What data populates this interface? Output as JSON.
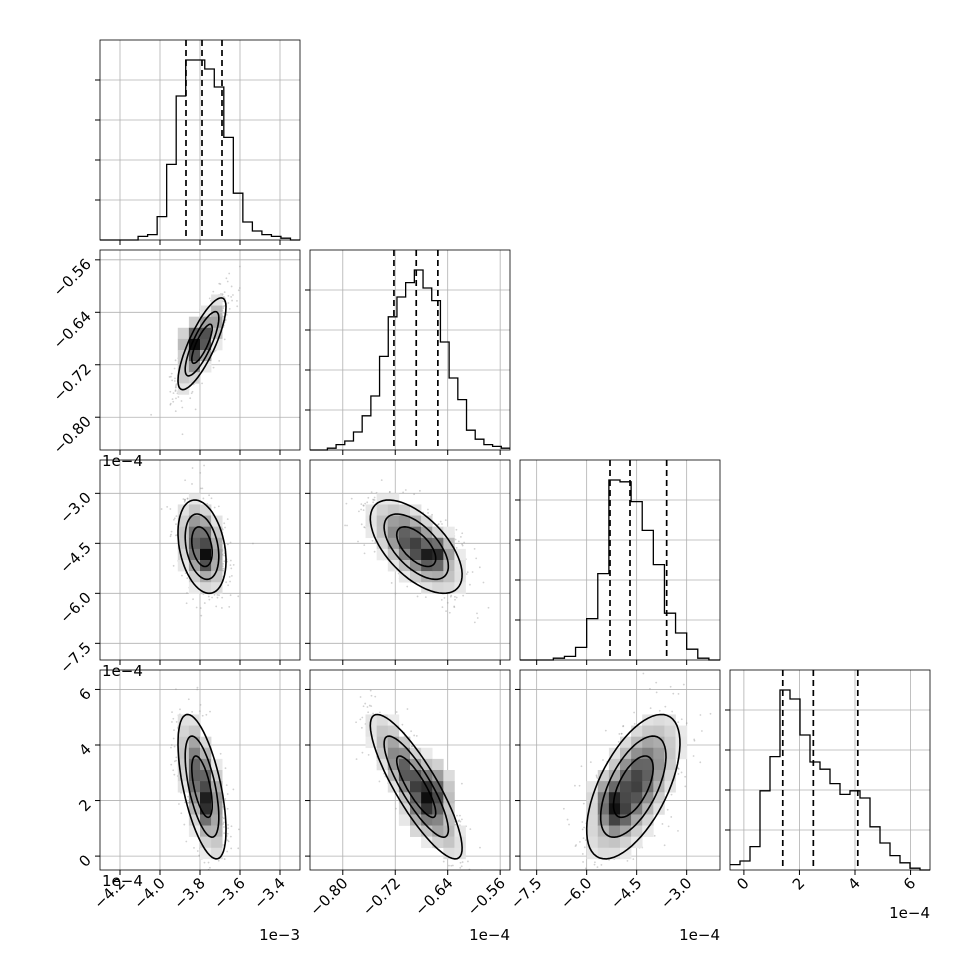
{
  "chart_data": {
    "type": "corner",
    "parameters": [
      {
        "range": [
          -4.3,
          -3.3
        ],
        "ticks": [
          -4.2,
          -4.0,
          -3.8,
          -3.6,
          -3.4
        ],
        "tick_labels": [
          "−4.2",
          "−4.0",
          "−3.8",
          "−3.6",
          "−3.4"
        ],
        "offset": "1e−3",
        "quantiles": [
          -3.87,
          -3.79,
          -3.69
        ],
        "mean": -3.79,
        "sd": 0.06,
        "hist": [
          0,
          0,
          0,
          0,
          0.02,
          0.03,
          0.13,
          0.42,
          0.8,
          1.0,
          1.0,
          0.95,
          0.85,
          0.57,
          0.26,
          0.1,
          0.05,
          0.03,
          0.02,
          0.01,
          0
        ]
      },
      {
        "range": [
          -0.85,
          -0.545
        ],
        "ticks": [
          -0.8,
          -0.72,
          -0.64,
          -0.56
        ],
        "tick_labels": [
          "−0.80",
          "−0.72",
          "−0.64",
          "−0.56"
        ],
        "offset": "1e−4",
        "quantiles": [
          -0.722,
          -0.688,
          -0.655
        ],
        "mean": -0.688,
        "sd": 0.035,
        "hist": [
          0,
          0,
          0.01,
          0.03,
          0.05,
          0.1,
          0.19,
          0.3,
          0.52,
          0.74,
          0.85,
          0.93,
          1.0,
          0.9,
          0.83,
          0.6,
          0.4,
          0.28,
          0.11,
          0.06,
          0.03,
          0.02,
          0.01
        ]
      },
      {
        "range": [
          -8.0,
          -2.0
        ],
        "ticks": [
          -7.5,
          -6.0,
          -4.5,
          -3.0
        ],
        "tick_labels": [
          "−7.5",
          "−6.0",
          "−4.5",
          "−3.0"
        ],
        "offset": "1e−4",
        "quantiles": [
          -5.3,
          -4.7,
          -3.6
        ],
        "mean": -4.6,
        "sd": 0.7,
        "hist": [
          0,
          0,
          0,
          0.01,
          0.02,
          0.07,
          0.23,
          0.48,
          1.0,
          0.99,
          0.88,
          0.72,
          0.53,
          0.26,
          0.15,
          0.06,
          0.01,
          0
        ]
      },
      {
        "range": [
          -0.5,
          6.7
        ],
        "ticks": [
          0,
          2,
          4,
          6
        ],
        "tick_labels": [
          "0",
          "2",
          "4",
          "6"
        ],
        "offset": "1e−4",
        "quantiles": [
          1.4,
          2.5,
          4.1
        ],
        "mean": 2.5,
        "sd": 1.3,
        "hist": [
          0.03,
          0.05,
          0.13,
          0.44,
          0.63,
          1.0,
          0.95,
          0.75,
          0.6,
          0.56,
          0.48,
          0.42,
          0.44,
          0.4,
          0.24,
          0.15,
          0.08,
          0.04,
          0.01,
          0
        ]
      }
    ],
    "pairs": [
      {
        "row": 1,
        "col": 0,
        "rho": 0.8,
        "mode_x": -3.83,
        "mode_y": -0.69
      },
      {
        "row": 2,
        "col": 0,
        "rho": -0.3,
        "mode_x": -3.77,
        "mode_y": -4.85
      },
      {
        "row": 2,
        "col": 1,
        "rho": -0.6,
        "mode_x": -0.665,
        "mode_y": -4.85
      },
      {
        "row": 3,
        "col": 0,
        "rho": -0.6,
        "mode_x": -3.76,
        "mode_y": 2.0
      },
      {
        "row": 3,
        "col": 1,
        "rho": -0.85,
        "mode_x": -0.67,
        "mode_y": 2.1
      },
      {
        "row": 3,
        "col": 2,
        "rho": 0.6,
        "mode_x": -5.1,
        "mode_y": 1.8
      }
    ],
    "grid": true,
    "quantile_lines": "dashed"
  }
}
